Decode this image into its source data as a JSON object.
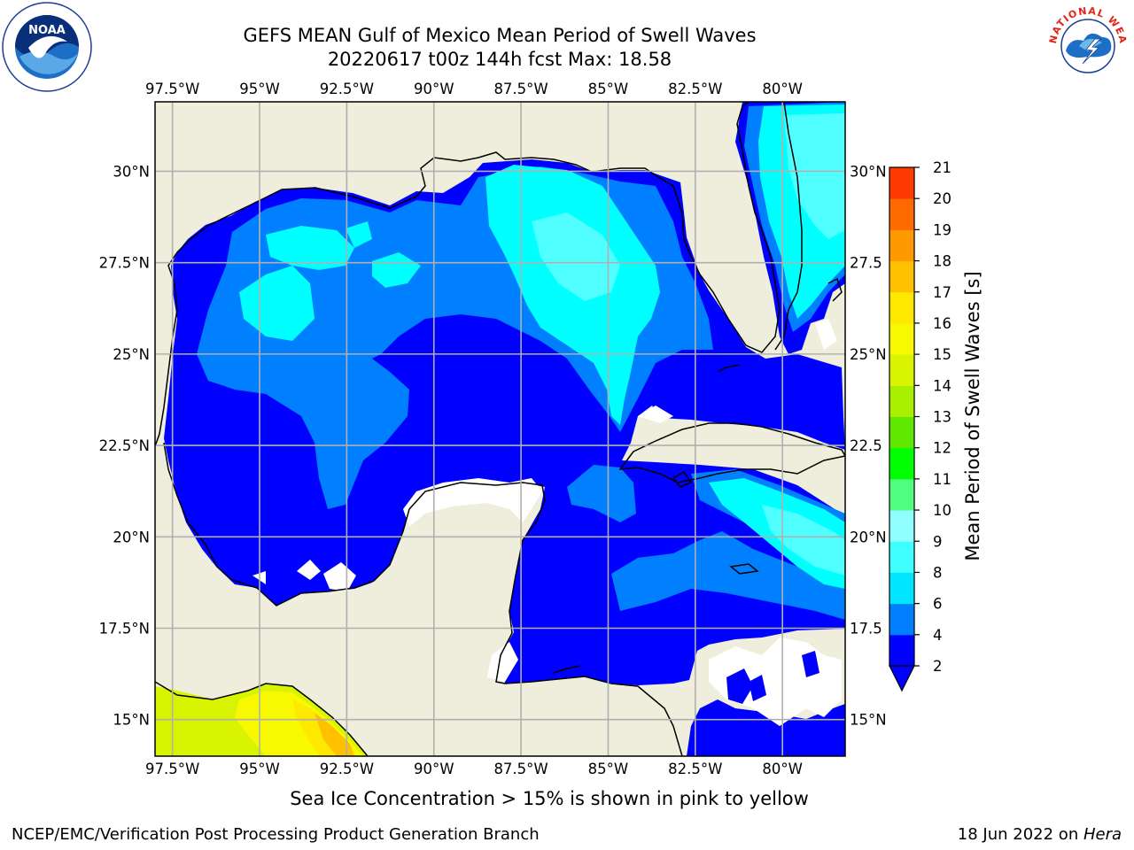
{
  "title": {
    "line1": "GEFS MEAN Gulf of Mexico Mean Period of Swell Waves",
    "line2": "20220617 t00z 144h fcst   Max: 18.58"
  },
  "map": {
    "lon_labels": [
      "97.5°W",
      "95°W",
      "92.5°W",
      "90°W",
      "87.5°W",
      "85°W",
      "82.5°W",
      "80°W"
    ],
    "lon_values": [
      -97.5,
      -95,
      -92.5,
      -90,
      -87.5,
      -85,
      -82.5,
      -80
    ],
    "lat_labels": [
      "30°N",
      "27.5°N",
      "25°N",
      "22.5°N",
      "20°N",
      "17.5°N",
      "15°N"
    ],
    "lat_labels_right": [
      "30°N",
      "27.5",
      "25°N",
      "22.5",
      "20°N",
      "17.5",
      "15°N"
    ],
    "lat_values": [
      30,
      27.5,
      25,
      22.5,
      20,
      17.5,
      15
    ],
    "extent": {
      "lon_min": -98,
      "lon_max": -78.2,
      "lat_min": 14,
      "lat_max": 31.9
    },
    "land_color": "#efeedc",
    "grid_color": "#b0b0b0"
  },
  "colorbar": {
    "label": "Mean Period of Swell Waves [s]",
    "levels": [
      2,
      4,
      6,
      8,
      9,
      10,
      11,
      12,
      13,
      14,
      15,
      16,
      17,
      18,
      19,
      20,
      21
    ],
    "colors": [
      "#0000ff",
      "#0080ff",
      "#00e5ff",
      "#40ffff",
      "#90ffff",
      "#50ff80",
      "#00ff00",
      "#60e800",
      "#a8ef00",
      "#d8f400",
      "#f8f800",
      "#ffe800",
      "#ffc000",
      "#ff9900",
      "#ff6a00",
      "#ff3a00",
      "#ff0000"
    ],
    "extend_color": "#0000ff"
  },
  "footer": {
    "sea_ice_note": "Sea Ice Concentration > 15% is shown in pink to yellow",
    "credit": "NCEP/EMC/Verification Post Processing Product Generation Branch",
    "date": "18 Jun 2022 on ",
    "machine": "Hera"
  },
  "logos": {
    "noaa_text": "NOAA",
    "nws_text": "NATIONAL WEATHER SERVICE"
  }
}
